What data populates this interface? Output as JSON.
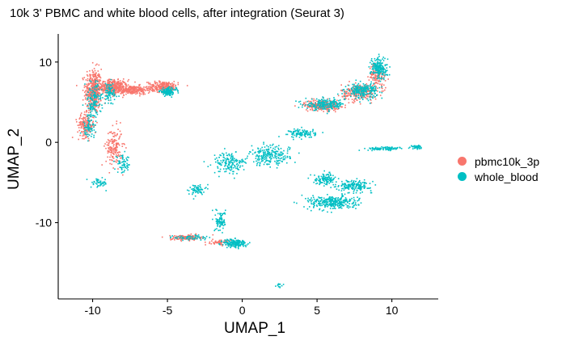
{
  "chart_data": {
    "type": "scatter",
    "title": "10k 3' PBMC and white blood cells, after integration (Seurat 3)",
    "xlabel": "UMAP_1",
    "ylabel": "UMAP_2",
    "xlim": [
      -12.3,
      13.1
    ],
    "ylim": [
      -19.5,
      13.5
    ],
    "xticks": [
      -10,
      -5,
      0,
      5,
      10
    ],
    "yticks": [
      -10,
      0,
      10
    ],
    "grid": false,
    "legend_position": "right",
    "series": [
      {
        "name": "pbmc10k_3p",
        "color": "#F8766D",
        "clusters": [
          {
            "x": -10.0,
            "y": 6.5,
            "sx": 0.5,
            "sy": 2.5,
            "n": 420
          },
          {
            "x": -8.7,
            "y": 7.0,
            "sx": 0.9,
            "sy": 0.8,
            "n": 320
          },
          {
            "x": -7.5,
            "y": 6.6,
            "sx": 1.2,
            "sy": 0.5,
            "n": 260
          },
          {
            "x": -5.3,
            "y": 7.0,
            "sx": 0.9,
            "sy": 0.6,
            "n": 260
          },
          {
            "x": -10.5,
            "y": 2.2,
            "sx": 0.5,
            "sy": 1.3,
            "n": 180
          },
          {
            "x": -8.6,
            "y": -0.5,
            "sx": 0.5,
            "sy": 2.2,
            "n": 160
          },
          {
            "x": 5.3,
            "y": 4.7,
            "sx": 1.1,
            "sy": 0.6,
            "n": 260
          },
          {
            "x": 7.8,
            "y": 6.3,
            "sx": 1.1,
            "sy": 0.9,
            "n": 260
          },
          {
            "x": 9.0,
            "y": 8.5,
            "sx": 0.5,
            "sy": 1.2,
            "n": 130
          },
          {
            "x": -3.8,
            "y": -11.8,
            "sx": 0.9,
            "sy": 0.3,
            "n": 160
          },
          {
            "x": -1.5,
            "y": -12.4,
            "sx": 0.6,
            "sy": 0.3,
            "n": 60
          }
        ]
      },
      {
        "name": "whole_blood",
        "color": "#00BFC4",
        "clusters": [
          {
            "x": -10.0,
            "y": 5.2,
            "sx": 0.5,
            "sy": 2.2,
            "n": 140
          },
          {
            "x": -8.9,
            "y": 6.2,
            "sx": 0.5,
            "sy": 1.2,
            "n": 80
          },
          {
            "x": -5.0,
            "y": 6.4,
            "sx": 0.5,
            "sy": 0.4,
            "n": 140
          },
          {
            "x": -10.3,
            "y": 1.8,
            "sx": 0.4,
            "sy": 1.0,
            "n": 60
          },
          {
            "x": -9.6,
            "y": -5.0,
            "sx": 0.5,
            "sy": 0.5,
            "n": 50
          },
          {
            "x": -8.0,
            "y": -2.7,
            "sx": 0.5,
            "sy": 1.0,
            "n": 60
          },
          {
            "x": 5.5,
            "y": 4.8,
            "sx": 1.2,
            "sy": 0.6,
            "n": 200
          },
          {
            "x": 8.0,
            "y": 6.5,
            "sx": 0.9,
            "sy": 0.8,
            "n": 220
          },
          {
            "x": 9.1,
            "y": 9.3,
            "sx": 0.5,
            "sy": 1.3,
            "n": 190
          },
          {
            "x": 4.0,
            "y": 1.2,
            "sx": 0.8,
            "sy": 0.5,
            "n": 110
          },
          {
            "x": 1.8,
            "y": -1.6,
            "sx": 1.2,
            "sy": 1.1,
            "n": 220
          },
          {
            "x": -0.9,
            "y": -2.5,
            "sx": 1.0,
            "sy": 1.2,
            "n": 160
          },
          {
            "x": 9.5,
            "y": -0.7,
            "sx": 1.2,
            "sy": 0.2,
            "n": 90
          },
          {
            "x": 11.6,
            "y": -0.5,
            "sx": 0.3,
            "sy": 0.2,
            "n": 40
          },
          {
            "x": 5.5,
            "y": -4.5,
            "sx": 0.7,
            "sy": 0.6,
            "n": 120
          },
          {
            "x": 7.5,
            "y": -5.3,
            "sx": 1.0,
            "sy": 0.6,
            "n": 160
          },
          {
            "x": 6.0,
            "y": -7.4,
            "sx": 1.5,
            "sy": 0.8,
            "n": 300
          },
          {
            "x": -1.5,
            "y": -9.7,
            "sx": 0.3,
            "sy": 1.1,
            "n": 90
          },
          {
            "x": -0.5,
            "y": -12.5,
            "sx": 0.7,
            "sy": 0.5,
            "n": 180
          },
          {
            "x": -3.5,
            "y": -11.8,
            "sx": 1.0,
            "sy": 0.3,
            "n": 60
          },
          {
            "x": -3.1,
            "y": -5.8,
            "sx": 0.5,
            "sy": 0.6,
            "n": 60
          },
          {
            "x": 2.4,
            "y": -17.7,
            "sx": 0.2,
            "sy": 0.2,
            "n": 12
          }
        ]
      }
    ]
  }
}
